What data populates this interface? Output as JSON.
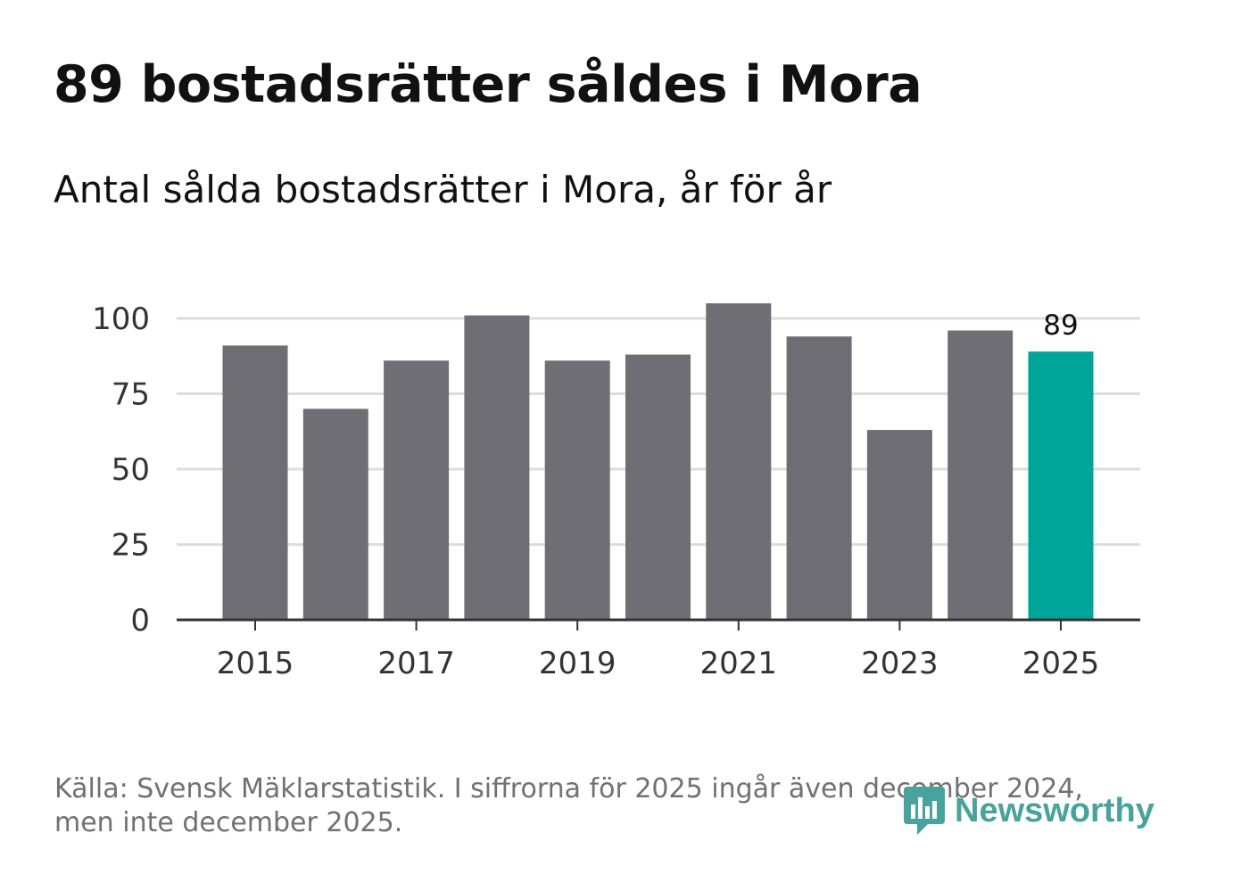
{
  "chart_data": {
    "type": "bar",
    "title": "89 bostadsrätter såldes i Mora",
    "subtitle": "Antal sålda bostadsrätter i Mora, år för år",
    "categories": [
      2015,
      2016,
      2017,
      2018,
      2019,
      2020,
      2021,
      2022,
      2023,
      2024,
      2025
    ],
    "values": [
      91,
      70,
      86,
      101,
      86,
      88,
      105,
      94,
      63,
      96,
      89
    ],
    "xlabel": "",
    "ylabel": "",
    "ylim": [
      0,
      100
    ],
    "yticks": [
      0,
      25,
      50,
      75,
      100
    ],
    "xticks": [
      2015,
      2017,
      2019,
      2021,
      2023,
      2025
    ],
    "grid": true,
    "highlight_index": 10,
    "highlight_label": "89",
    "colors": {
      "bar": "#6f6e74",
      "highlight": "#00a59a",
      "grid": "#dddddd",
      "axis": "#333333"
    }
  },
  "source_lines": [
    "Källa: Svensk Mäklarstatistik. I siffrorna för 2025 ingår även december 2024,",
    "men inte december 2025."
  ],
  "brand": {
    "name": "Newsworthy",
    "color": "#47a39b"
  }
}
